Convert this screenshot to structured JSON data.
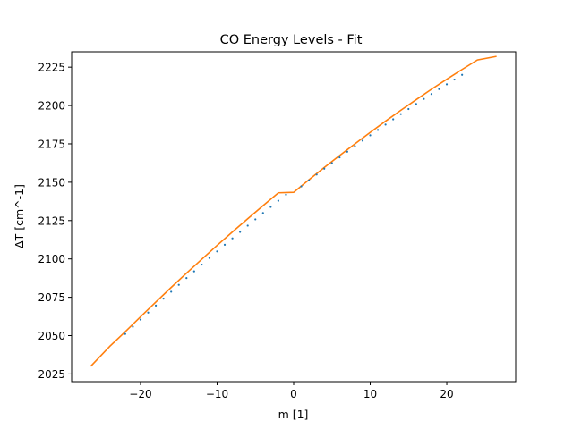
{
  "chart_data": {
    "type": "scatter",
    "title": "CO Energy Levels - Fit",
    "xlabel": "m [1]",
    "ylabel": "ΔT [cm^-1]",
    "xlim": [
      -29,
      29
    ],
    "ylim": [
      2020,
      2235
    ],
    "xticks": [
      -20,
      -10,
      0,
      10,
      20
    ],
    "yticks": [
      2025,
      2050,
      2075,
      2100,
      2125,
      2150,
      2175,
      2200,
      2225
    ],
    "grid": false,
    "legend": "none",
    "fit": {
      "x": [
        -26.5,
        -24,
        -22,
        -20,
        -18,
        -16,
        -14,
        -12,
        -10,
        -8,
        -6,
        -4,
        -2,
        0,
        2,
        4,
        6,
        8,
        10,
        12,
        14,
        16,
        18,
        20,
        22,
        24,
        26.5
      ],
      "y": [
        2030.0,
        2043.1,
        2052.5,
        2062.3,
        2071.9,
        2081.4,
        2090.7,
        2099.8,
        2108.8,
        2117.6,
        2126.2,
        2134.7,
        2143.1,
        2143.4,
        2151.6,
        2159.6,
        2167.4,
        2175.0,
        2182.5,
        2189.8,
        2196.9,
        2203.8,
        2210.6,
        2217.1,
        2223.5,
        2229.7,
        2232.0
      ]
    },
    "series": [
      {
        "x": [
          -22,
          -21,
          -20,
          -19,
          -18,
          -17,
          -16,
          -15,
          -14,
          -13,
          -12,
          -11,
          -10,
          -9,
          -8,
          -7,
          -6,
          -5,
          -4,
          -3,
          -2,
          -1,
          1,
          2,
          3,
          4,
          5,
          6,
          7,
          8,
          9,
          10,
          11,
          12,
          13,
          14,
          15,
          16,
          17,
          18,
          19,
          20,
          21,
          22
        ],
        "y": [
          2051.1,
          2055.8,
          2060.4,
          2065.0,
          2069.6,
          2074.1,
          2078.6,
          2083.1,
          2087.5,
          2091.9,
          2096.3,
          2100.6,
          2104.9,
          2109.2,
          2113.4,
          2117.6,
          2121.7,
          2125.8,
          2129.9,
          2133.9,
          2137.9,
          2141.9,
          2147.3,
          2151.2,
          2155.0,
          2158.8,
          2162.5,
          2166.2,
          2169.9,
          2173.5,
          2177.1,
          2180.6,
          2184.1,
          2187.6,
          2191.0,
          2194.4,
          2197.7,
          2201.0,
          2204.3,
          2207.5,
          2210.7,
          2213.8,
          2216.9,
          2220.0
        ]
      }
    ],
    "colors": {
      "fit_line": "#ff7f0e",
      "points": "#1f77b4"
    }
  }
}
